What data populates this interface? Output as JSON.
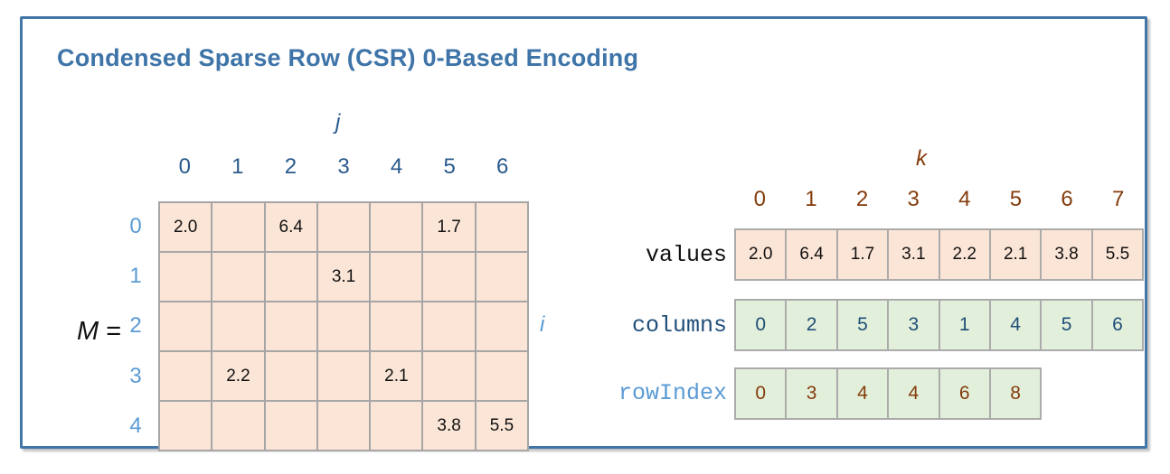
{
  "title": "Condensed Sparse Row (CSR) 0-Based Encoding",
  "matrix": {
    "m_label": "M",
    "eq_label": "=",
    "col_axis": "j",
    "row_axis": "i",
    "col_headers": [
      "0",
      "1",
      "2",
      "3",
      "4",
      "5",
      "6"
    ],
    "row_headers": [
      "0",
      "1",
      "2",
      "3",
      "4"
    ],
    "cells": [
      [
        "2.0",
        "",
        "6.4",
        "",
        "",
        "1.7",
        ""
      ],
      [
        "",
        "",
        "",
        "3.1",
        "",
        "",
        ""
      ],
      [
        "",
        "",
        "",
        "",
        "",
        "",
        ""
      ],
      [
        "",
        "2.2",
        "",
        "",
        "2.1",
        "",
        ""
      ],
      [
        "",
        "",
        "",
        "",
        "",
        "3.8",
        "5.5"
      ]
    ]
  },
  "csr": {
    "index_axis": "k",
    "k_indices": [
      "0",
      "1",
      "2",
      "3",
      "4",
      "5",
      "6",
      "7"
    ],
    "values_label": "values",
    "values": [
      "2.0",
      "6.4",
      "1.7",
      "3.1",
      "2.2",
      "2.1",
      "3.8",
      "5.5"
    ],
    "columns_label": "columns",
    "columns": [
      "0",
      "2",
      "5",
      "3",
      "1",
      "4",
      "5",
      "6"
    ],
    "rowindex_label": "rowIndex",
    "rowindex": [
      "0",
      "3",
      "4",
      "4",
      "6",
      "8"
    ]
  },
  "colors": {
    "accent_blue": "#3E74A8",
    "dark_blue": "#2A5A8C",
    "light_blue": "#5B9BD5",
    "dark_navy": "#1F4E79",
    "brown": "#843C0C",
    "peach_cell": "#FBE5D6",
    "green_cell": "#E2EFDA",
    "grid_line": "#A6A6A6"
  }
}
